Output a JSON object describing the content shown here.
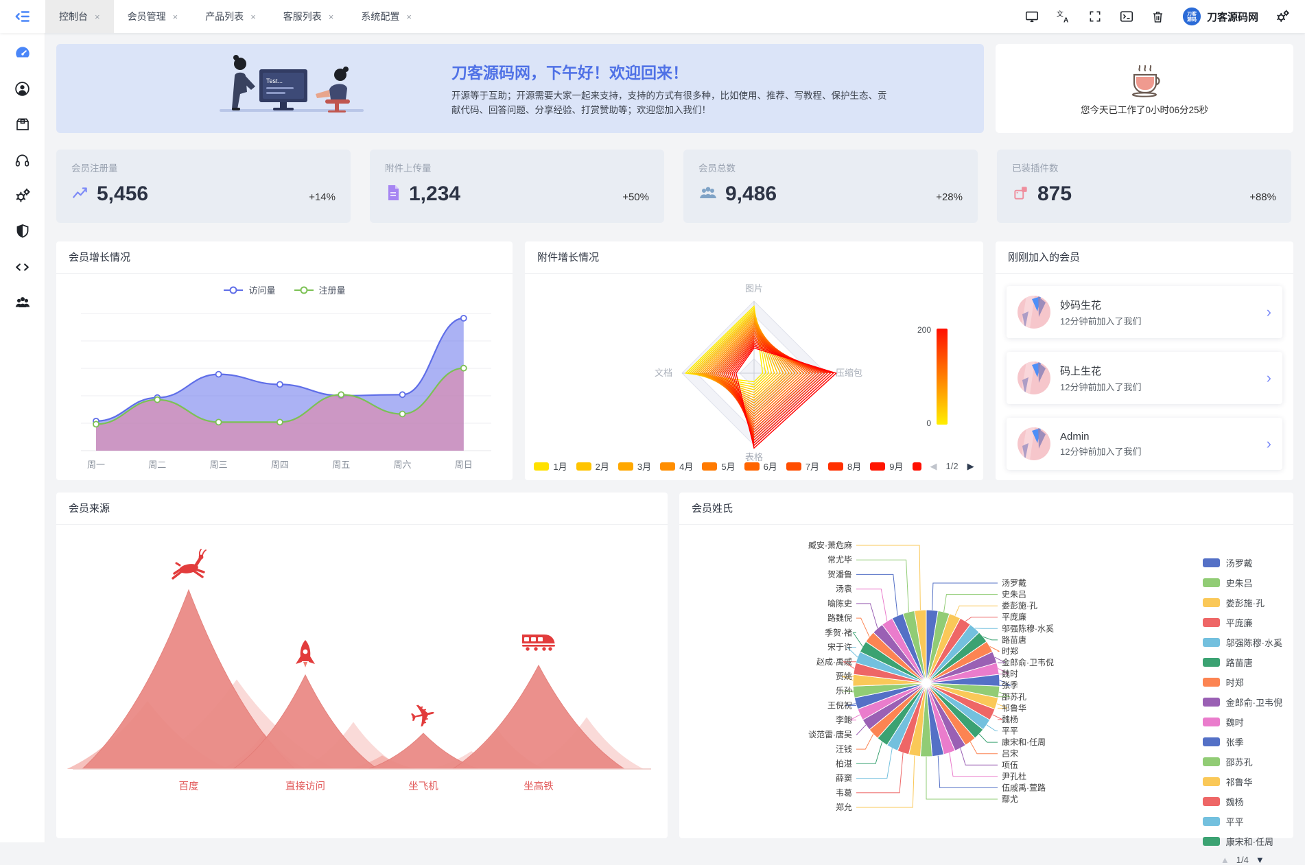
{
  "tabs": [
    {
      "label": "控制台",
      "active": true
    },
    {
      "label": "会员管理",
      "active": false
    },
    {
      "label": "产品列表",
      "active": false
    },
    {
      "label": "客服列表",
      "active": false
    },
    {
      "label": "系统配置",
      "active": false
    }
  ],
  "tab_close_glyph": "×",
  "topbar": {
    "icons": [
      "monitor-icon",
      "translate-icon",
      "fullscreen-icon",
      "terminal-icon",
      "trash-icon"
    ],
    "brand_name": "刀客源码网",
    "logo_text": "刀客源码",
    "settings_icon": "gears-icon"
  },
  "sidebar": {
    "items": [
      "dashboard",
      "members",
      "products",
      "support",
      "settings",
      "security",
      "code",
      "community"
    ]
  },
  "banner": {
    "title": "刀客源码网，下午好！欢迎回来！",
    "subtitle": "开源等于互助；开源需要大家一起来支持，支持的方式有很多种，比如使用、推荐、写教程、保护生态、贡献代码、回答问题、分享经验、打赏赞助等；欢迎您加入我们！",
    "monitor_text": "Test..."
  },
  "work_timer": {
    "text": "您今天已工作了0小时06分25秒"
  },
  "stats": [
    {
      "title": "会员注册量",
      "value": "5,456",
      "delta": "+14%",
      "icon": "chart-line",
      "color": "#7d8bf7"
    },
    {
      "title": "附件上传量",
      "value": "1,234",
      "delta": "+50%",
      "icon": "file",
      "color": "#a685f2"
    },
    {
      "title": "会员总数",
      "value": "9,486",
      "delta": "+28%",
      "icon": "users",
      "color": "#7fa3c6"
    },
    {
      "title": "已装插件数",
      "value": "875",
      "delta": "+88%",
      "icon": "plugin",
      "color": "#ef8f9e"
    }
  ],
  "members": {
    "title": "刚刚加入的会员",
    "items": [
      {
        "name": "妙码生花",
        "time": "12分钟前加入了我们"
      },
      {
        "name": "码上生花",
        "time": "12分钟前加入了我们"
      },
      {
        "name": "Admin",
        "time": "12分钟前加入了我们"
      }
    ]
  },
  "chart_data": [
    {
      "id": "growth",
      "type": "area-line",
      "title": "会员增长情况",
      "categories": [
        "周一",
        "周二",
        "周三",
        "周四",
        "周五",
        "周六",
        "周日"
      ],
      "series": [
        {
          "name": "访问量",
          "color": "#5f6ee8",
          "fill": "rgba(102,115,235,0.55)",
          "values": [
            29,
            52,
            75,
            65,
            54,
            55,
            130
          ]
        },
        {
          "name": "注册量",
          "color": "#7cc154",
          "fill": "rgba(226,134,164,0.60)",
          "values": [
            26,
            50,
            28,
            28,
            55,
            36,
            81
          ]
        }
      ],
      "ylim": [
        0,
        140
      ],
      "grid": true,
      "legend_position": "top"
    },
    {
      "id": "radar",
      "type": "radar",
      "title": "附件增长情况",
      "axes": [
        "图片",
        "压缩包",
        "表格",
        "文档"
      ],
      "months": [
        "1月",
        "2月",
        "3月",
        "4月",
        "5月",
        "6月",
        "7月",
        "8月",
        "9月"
      ],
      "month_colors": [
        "#ffe100",
        "#ffc400",
        "#ffa800",
        "#ff8e00",
        "#ff7a00",
        "#ff6400",
        "#ff4d00",
        "#ff3000",
        "#ff1500"
      ],
      "extra_swatch": "#ff0f00",
      "scale": {
        "max": "200",
        "min": "0"
      },
      "page": "1/2",
      "series_count": 26
    },
    {
      "id": "sources",
      "type": "peaks",
      "title": "会员来源",
      "items": [
        {
          "label": "百度",
          "icon": "deer-icon",
          "value": 261
        },
        {
          "label": "直接访问",
          "icon": "rocket-icon",
          "value": 137
        },
        {
          "label": "坐飞机",
          "icon": "plane-icon",
          "value": 52
        },
        {
          "label": "坐高铁",
          "icon": "train-icon",
          "value": 151
        }
      ],
      "label_color": "#e25b5b"
    },
    {
      "id": "surnames",
      "type": "pie",
      "title": "会员姓氏",
      "labels": [
        "汤罗戴",
        "史朱吕",
        "娄彭施·孔",
        "平庞廉",
        "邬强陈穆·水奚",
        "路苗唐",
        "时郑",
        "金郎俞·卫韦倪",
        "魏时",
        "张季",
        "邵苏孔",
        "祁鲁华",
        "魏杨",
        "平平",
        "康宋和·任周",
        "吕宋",
        "项伍",
        "尹孔杜",
        "伍戚禹·萱路",
        "鄢尤",
        "郑允",
        "韦葛",
        "薛窦",
        "柏湛",
        "汪钱",
        "谈范雷·唐吴",
        "李鲍",
        "王倪祝",
        "乐孙",
        "贾姚",
        "赵成·禹戚",
        "宋于许",
        "季贺·褚",
        "路魏倪",
        "喻陈史",
        "汤袁",
        "贺潘鲁",
        "常尤毕",
        "臧安·萧危麻"
      ],
      "palette": [
        "#5470c6",
        "#91cc75",
        "#fac858",
        "#ee6666",
        "#73c0de",
        "#3ba272",
        "#fc8452",
        "#9a60b4",
        "#ea7ccc"
      ],
      "legend_visible_count": 15,
      "legend_page": "1/4"
    }
  ],
  "pagination_glyphs": {
    "left": "◀",
    "right": "▶",
    "up": "▲",
    "down": "▼"
  }
}
